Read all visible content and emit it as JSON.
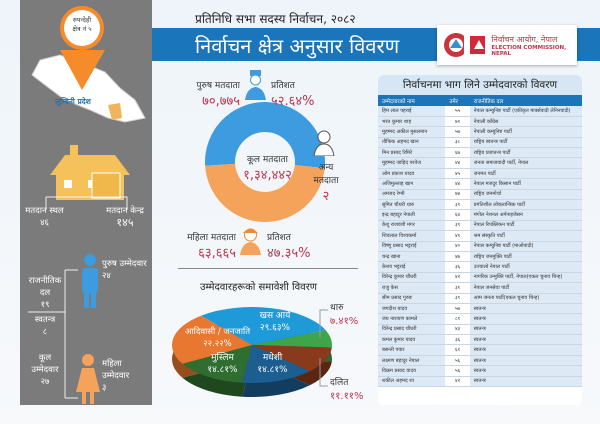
{
  "header": {
    "subtitle": "प्रतिनिधि सभा सदस्य निर्वाचन, २०८२",
    "title": "निर्वाचन क्षेत्र अनुसार विवरण",
    "logo_np": "निर्वाचन आयोग, नेपाल",
    "logo_en": "ELECTION COMMISSION, NEPAL"
  },
  "left": {
    "pin_line1": "रुपन्देही",
    "pin_line2": "क्षेत्र नं ५",
    "province": "लुम्बिनी प्रदेश",
    "polling_place_label": "मतदान स्थल",
    "polling_place": "४६",
    "polling_center_label": "मतदान केन्द्र",
    "polling_center": "१४५",
    "party_label": "राजनीतिक दल",
    "party": "१९",
    "independent_label": "स्वतन्त्र",
    "independent": "८",
    "total_label": "कूल उम्मेदवार",
    "total": "२७",
    "male_label": "पुरुष उम्मेदवार",
    "male": "२४",
    "female_label": "महिला उम्मेदवार",
    "female": "३"
  },
  "voters": {
    "male_label": "पुरुष मतदाता",
    "male": "७०,७७५",
    "male_pct_label": "प्रतिशत",
    "male_pct": "५२.६४%",
    "female_label": "महिला मतदाता",
    "female": "६३,६६५",
    "female_pct_label": "प्रतिशत",
    "female_pct": "४७.३५%",
    "other_label": "अन्य मतदाता",
    "other": "२",
    "total_label": "कूल मतदाता",
    "total": "१,३४,४४२",
    "colors": {
      "male": "#3d9be0",
      "female": "#f5a35a"
    },
    "shares": [
      52.64,
      47.35
    ]
  },
  "inclusion": {
    "title": "उम्मेदवारहरूको समावेशी विवरण",
    "slices": [
      {
        "name": "खस आर्य",
        "pct": "२९.६३%",
        "value": 29.63,
        "color": "#1f9ad8"
      },
      {
        "name": "थारु",
        "pct": "७.४१%",
        "value": 7.41,
        "color": "#3ea54a"
      },
      {
        "name": "दलित",
        "pct": "११.११%",
        "value": 11.11,
        "color": "#8a3a1c"
      },
      {
        "name": "मधेशी",
        "pct": "१४.८१%",
        "value": 14.81,
        "color": "#1d5e91"
      },
      {
        "name": "मुस्लिम",
        "pct": "१४.८१%",
        "value": 14.81,
        "color": "#2f6e30"
      },
      {
        "name": "आदिवासी / जनजाति",
        "pct": "२२.२२%",
        "value": 22.22,
        "color": "#e8782f"
      }
    ]
  },
  "candidates": {
    "title": "निर्वाचनमा भाग लिने उम्मेदवारको विवरण",
    "headers": [
      "उम्मेदवारको नाम",
      "उमेर",
      "राजनीतिक दल"
    ],
    "rows": [
      [
        "हिम लाल पहराई",
        "५५",
        "नेपाल कम्युनिष्ट पार्टी (एकीकृत मार्क्सवादी लेनिनवादी)"
      ],
      [
        "भरत कुमार शाह",
        "७१",
        "नेपाली काँग्रेस"
      ],
      [
        "मुहम्मद अकील मुसलमान",
        "५७",
        "नेपाली कम्युनिष्ट पार्टी"
      ],
      [
        "तौफिक अहमद खान",
        "३८",
        "राष्ट्रिय स्वतन्त्र पार्टी"
      ],
      [
        "मिन प्रसाद रिमिरे",
        "६७",
        "राष्ट्रिय प्रजातन्त्र पार्टी"
      ],
      [
        "मुहम्मद जाहिद परवेज",
        "४४",
        "जनता समाजवादी पार्टी, नेपाल"
      ],
      [
        "ओम प्रकाश यादव",
        "४५",
        "जनमत पार्टी"
      ],
      [
        "अजिमुल्लाह खान",
        "४४",
        "नेपाल मजदुर किसान पार्टी"
      ],
      [
        "अमजद रेग्मी",
        "७४",
        "राष्ट्रिय जनमोर्चा"
      ],
      [
        "सुमित चौधरी थारु",
        "३१",
        "प्रगतिशील लोकतान्त्रिक पार्टी"
      ],
      [
        "इन्द्र बहादुर नेपाली",
        "६४",
        "मंगोल नेशनल अर्गनाइजेसन"
      ],
      [
        "केशु राजवंशी मगर",
        "३९",
        "नेपाल रिपब्लिकन पार्टी"
      ],
      [
        "शिवलाल विश्वकर्मा",
        "४१",
        "श्रम संस्कृति पार्टी"
      ],
      [
        "विष्णु प्रसाद भट्टराई",
        "४०",
        "नेपाल कम्युनिष्ट पार्टी (माओवादी)"
      ],
      [
        "चन्द्र खाना",
        "४७",
        "राष्ट्रिय जनमुक्ति पार्टी"
      ],
      [
        "केशव भट्टराई",
        "३६",
        "उज्यालो नेपाल पार्टी"
      ],
      [
        "विरेन्द्र कुमार चौधरी",
        "४२",
        "नागरिक उन्मुक्ति पार्टी, नेपाल(एकल चुनाव चिन्ह)"
      ],
      [
        "राजु केस",
        "३१",
        "नेपाल जनसेवा पार्टी"
      ],
      [
        "सीम प्रसाद गुरुङ",
        "३९",
        "आम जनता पार्टी(एकल चुनाव चिन्ह)"
      ],
      [
        "जगदीश यादव",
        "५७",
        "स्वतन्त्र"
      ],
      [
        "जय नारायण कामले",
        "८१",
        "स्वतन्त्र"
      ],
      [
        "विरेन्द्र प्रसाद चौधरी",
        "४३",
        "स्वतन्त्र"
      ],
      [
        "कमल कुमार यादव",
        "३६",
        "स्वतन्त्र"
      ],
      [
        "बसन्ती पवार",
        "६१",
        "स्वतन्त्र"
      ],
      [
        "लक्ष्मण बहादुर नेपाल",
        "५६",
        "स्वतन्त्र"
      ],
      [
        "विक्रम प्रसाद यादव",
        "५६",
        "स्वतन्त्र"
      ],
      [
        "शकील अहमद शा",
        "४२",
        "स्वतन्त्र"
      ]
    ]
  }
}
